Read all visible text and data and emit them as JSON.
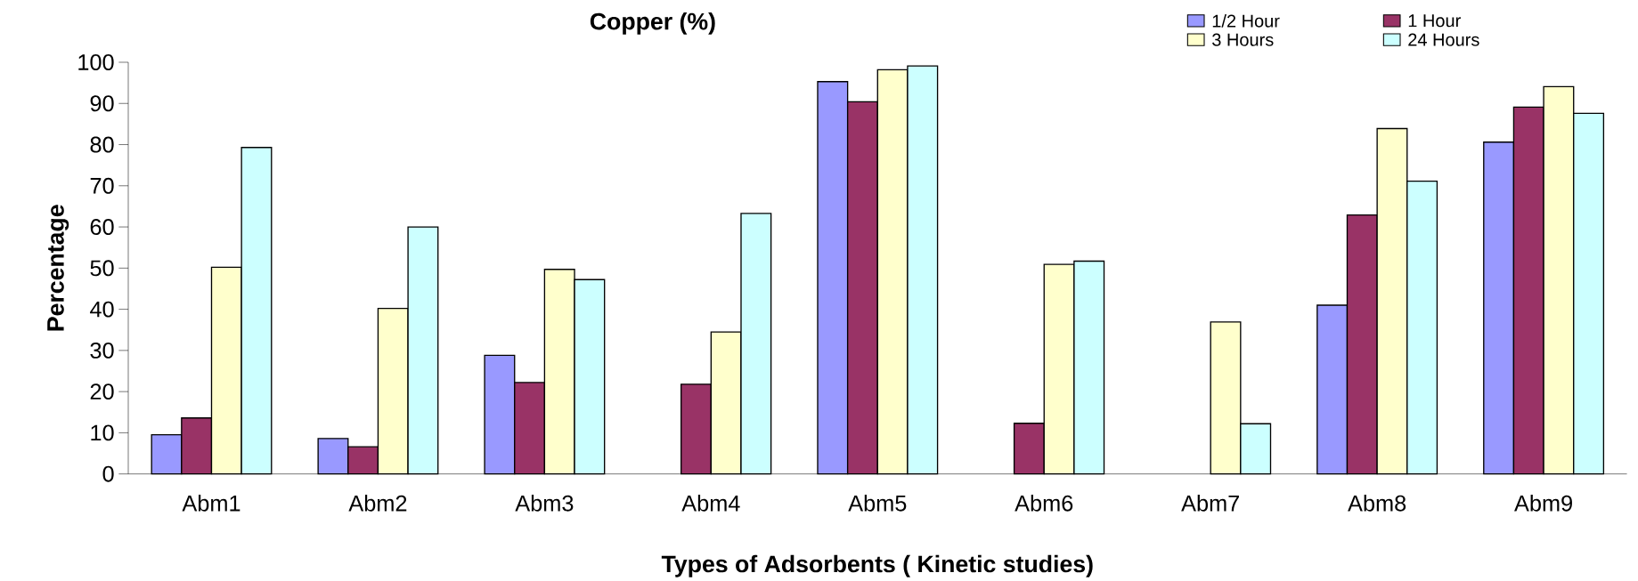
{
  "chart_data": {
    "type": "bar",
    "title": "Copper (%)",
    "xlabel": "Types of Adsorbents ( Kinetic studies)",
    "ylabel": "Percentage",
    "categories": [
      "Abm1",
      "Abm2",
      "Abm3",
      "Abm4",
      "Abm5",
      "Abm6",
      "Abm7",
      "Abm8",
      "Abm9"
    ],
    "series": [
      {
        "name": "1/2 Hour",
        "color": "#9999ff",
        "values": [
          9.5,
          8.6,
          28.8,
          null,
          95.3,
          null,
          null,
          41.0,
          80.6
        ]
      },
      {
        "name": "1 Hour",
        "color": "#993366",
        "values": [
          13.6,
          6.6,
          22.2,
          21.8,
          90.4,
          12.3,
          null,
          62.9,
          89.1
        ]
      },
      {
        "name": "3 Hours",
        "color": "#ffffcc",
        "values": [
          50.2,
          40.2,
          49.7,
          34.5,
          98.2,
          50.9,
          36.9,
          83.9,
          94.1
        ]
      },
      {
        "name": "24 Hours",
        "color": "#ccffff",
        "values": [
          79.3,
          60.0,
          47.2,
          63.3,
          99.1,
          51.7,
          12.2,
          71.1,
          87.6
        ]
      }
    ],
    "ylim": [
      0,
      100
    ],
    "yticks": [
      0,
      10,
      20,
      30,
      40,
      50,
      60,
      70,
      80,
      90,
      100
    ],
    "legend": "top right"
  }
}
